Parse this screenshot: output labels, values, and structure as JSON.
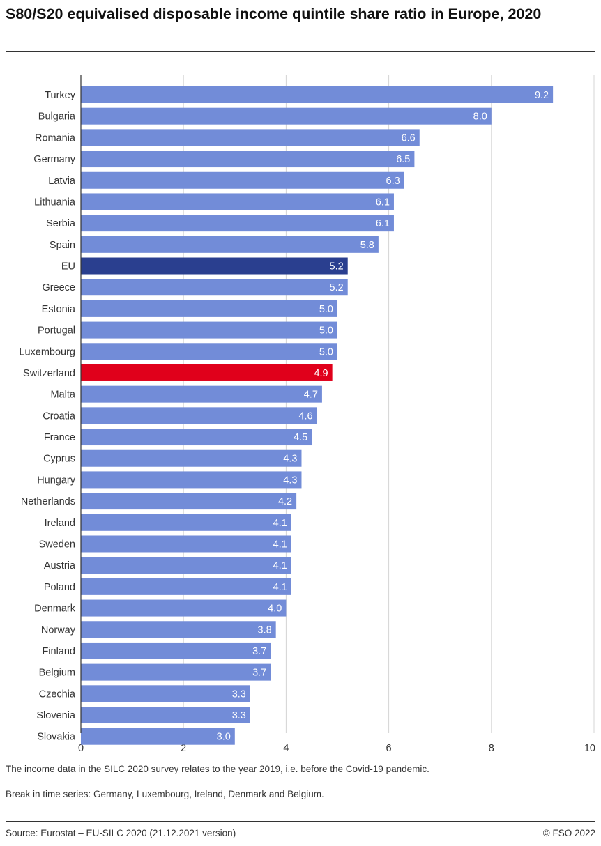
{
  "title": "S80/S20 equivalised disposable income quintile share ratio in Europe, 2020",
  "notes": [
    "The income data in the SILC 2020 survey relates to the year 2019, i.e. before the Covid-19 pandemic.",
    "Break in time series: Germany, Luxembourg, Ireland, Denmark and Belgium."
  ],
  "source": "Source: Eurostat – EU-SILC 2020 (21.12.2021 version)",
  "copyright": "© FSO 2022",
  "colors": {
    "default": "#728cd8",
    "eu": "#2a3f8f",
    "switzerland": "#e0001b"
  },
  "chart_data": {
    "type": "bar",
    "orientation": "horizontal",
    "categories": [
      "Turkey",
      "Bulgaria",
      "Romania",
      "Germany",
      "Latvia",
      "Lithuania",
      "Serbia",
      "Spain",
      "EU",
      "Greece",
      "Estonia",
      "Portugal",
      "Luxembourg",
      "Switzerland",
      "Malta",
      "Croatia",
      "France",
      "Cyprus",
      "Hungary",
      "Netherlands",
      "Ireland",
      "Sweden",
      "Austria",
      "Poland",
      "Denmark",
      "Norway",
      "Finland",
      "Belgium",
      "Czechia",
      "Slovenia",
      "Slovakia"
    ],
    "values": [
      9.2,
      8.0,
      6.6,
      6.5,
      6.3,
      6.1,
      6.1,
      5.8,
      5.2,
      5.2,
      5.0,
      5.0,
      5.0,
      4.9,
      4.7,
      4.6,
      4.5,
      4.3,
      4.3,
      4.2,
      4.1,
      4.1,
      4.1,
      4.1,
      4.0,
      3.8,
      3.7,
      3.7,
      3.3,
      3.3,
      3.0
    ],
    "data_labels": [
      "9.2",
      "8.0",
      "6.6",
      "6.5",
      "6.3",
      "6.1",
      "6.1",
      "5.8",
      "5.2",
      "5.2",
      "5.0",
      "5.0",
      "5.0",
      "4.9",
      "4.7",
      "4.6",
      "4.5",
      "4.3",
      "4.3",
      "4.2",
      "4.1",
      "4.1",
      "4.1",
      "4.1",
      "4.0",
      "3.8",
      "3.7",
      "3.7",
      "3.3",
      "3.3",
      "3.0"
    ],
    "highlight": {
      "EU": "eu",
      "Switzerland": "switzerland"
    },
    "xlim": [
      0,
      10
    ],
    "xticks": [
      "0",
      "2",
      "4",
      "6",
      "8",
      "10"
    ],
    "grid": true,
    "legend": "none"
  }
}
